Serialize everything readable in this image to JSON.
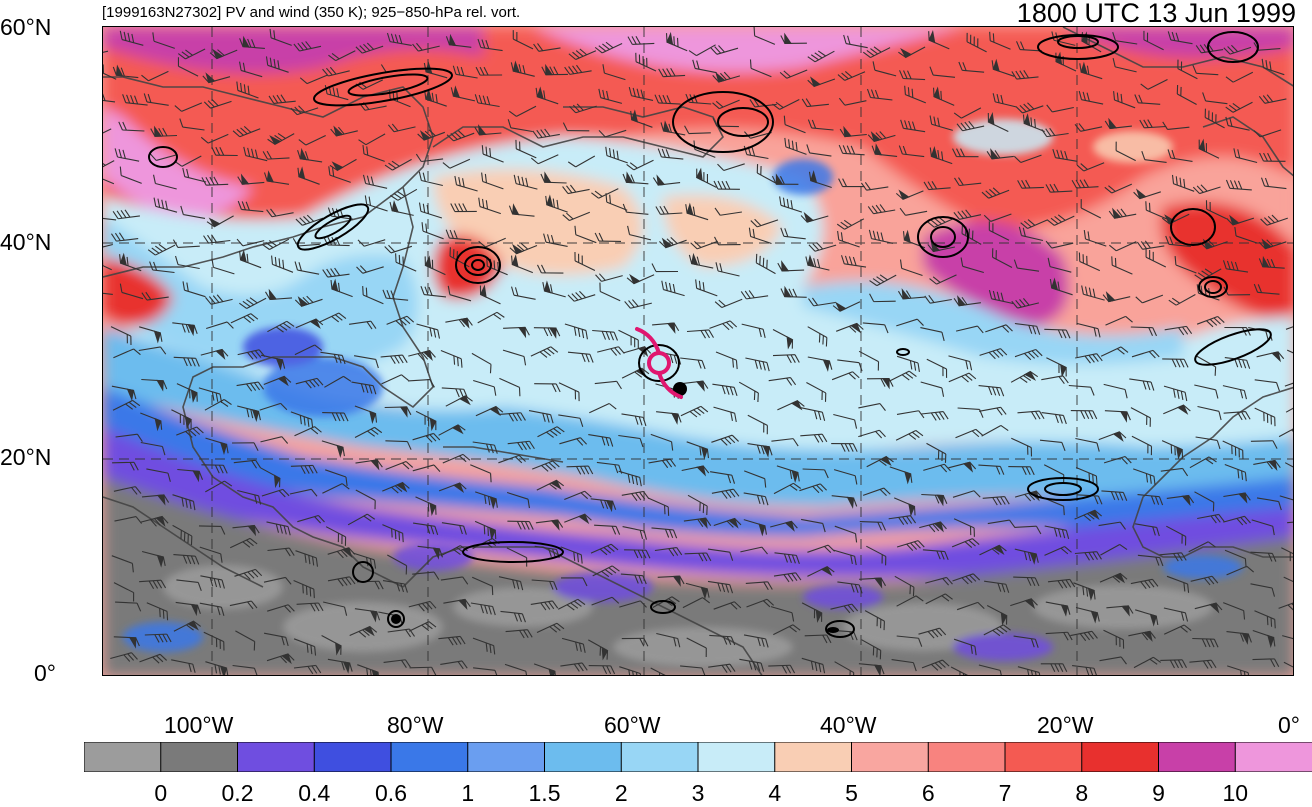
{
  "header": {
    "left_title": "[1999163N27302] PV and wind (350 K); 925−850-hPa rel. vort.",
    "right_title": "1800 UTC 13 Jun 1999"
  },
  "map": {
    "lat_labels": [
      "60°N",
      "40°N",
      "20°N",
      "0°"
    ],
    "lon_labels": [
      "100°W",
      "80°W",
      "60°W",
      "40°W",
      "20°W",
      "0°"
    ],
    "storm_icon": "hurricane-symbol-icon",
    "storm_color": "#e0166f"
  },
  "colorbar": {
    "colors": [
      "#9c9c9c",
      "#7a7a7a",
      "#6f4ee0",
      "#3f4fe0",
      "#3a78e8",
      "#6a9ef0",
      "#6cbcee",
      "#98d6f5",
      "#c8ecf8",
      "#f9ceb4",
      "#f9a6a0",
      "#f8837f",
      "#f45a52",
      "#e8302e",
      "#c840a8",
      "#ee96dc"
    ],
    "labels": [
      "0",
      "0.2",
      "0.4",
      "0.6",
      "1",
      "1.5",
      "2",
      "3",
      "4",
      "5",
      "6",
      "7",
      "8",
      "9",
      "10"
    ]
  }
}
